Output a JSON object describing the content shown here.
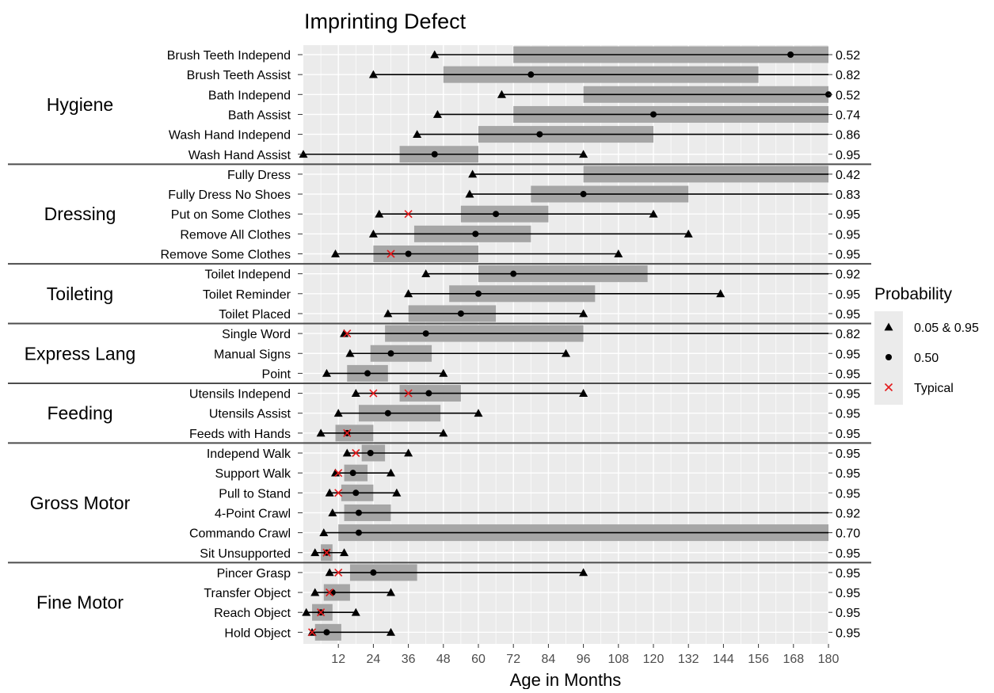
{
  "chart_data": {
    "type": "interval",
    "title": "Imprinting Defect",
    "xlabel": "Age in Months",
    "xlim": [
      0,
      180
    ],
    "xticks": [
      12,
      24,
      36,
      48,
      60,
      72,
      84,
      96,
      108,
      120,
      132,
      144,
      156,
      168,
      180
    ],
    "grid": true,
    "legend": {
      "title": "Probability",
      "placement": "right",
      "entries": [
        {
          "symbol": "triangle",
          "label": "0.05 & 0.95"
        },
        {
          "symbol": "circle",
          "label": "0.50"
        },
        {
          "symbol": "cross",
          "label": "Typical"
        }
      ]
    },
    "colors": {
      "panel": "#ebebeb",
      "bar": "#a6a6a6",
      "typical": "#e41a1c",
      "mark": "#000000",
      "group_line": "#4d4d4d"
    },
    "groups": [
      {
        "name": "Hygiene",
        "items": [
          {
            "label": "Brush Teeth Independ",
            "p05": 45,
            "p50": 167,
            "p95": 180,
            "bar": [
              72,
              180
            ],
            "typical": [],
            "prob": "0.52"
          },
          {
            "label": "Brush Teeth Assist",
            "p05": 24,
            "p50": 78,
            "p95": 180,
            "bar": [
              48,
              156
            ],
            "typical": [],
            "prob": "0.82"
          },
          {
            "label": "Bath Independ",
            "p05": 68,
            "p50": 180,
            "p95": 180,
            "bar": [
              96,
              180
            ],
            "typical": [],
            "prob": "0.52"
          },
          {
            "label": "Bath Assist",
            "p05": 46,
            "p50": 120,
            "p95": 180,
            "bar": [
              72,
              180
            ],
            "typical": [],
            "prob": "0.74"
          },
          {
            "label": "Wash Hand Independ",
            "p05": 39,
            "p50": 81,
            "p95": 180,
            "bar": [
              60,
              120
            ],
            "typical": [],
            "prob": "0.86"
          },
          {
            "label": "Wash Hand Assist",
            "p05": 0,
            "p50": 45,
            "p95": 96,
            "bar": [
              33,
              60
            ],
            "typical": [],
            "prob": "0.95"
          }
        ]
      },
      {
        "name": "Dressing",
        "items": [
          {
            "label": "Fully Dress",
            "p05": 58,
            "p50": null,
            "p95": 180,
            "bar": [
              96,
              180
            ],
            "typical": [],
            "prob": "0.42"
          },
          {
            "label": "Fully Dress No Shoes",
            "p05": 57,
            "p50": 96,
            "p95": 180,
            "bar": [
              78,
              132
            ],
            "typical": [],
            "prob": "0.83"
          },
          {
            "label": "Put on Some Clothes",
            "p05": 26,
            "p50": 66,
            "p95": 120,
            "bar": [
              54,
              84
            ],
            "typical": [
              36
            ],
            "prob": "0.95"
          },
          {
            "label": "Remove All Clothes",
            "p05": 24,
            "p50": 59,
            "p95": 132,
            "bar": [
              38,
              78
            ],
            "typical": [],
            "prob": "0.95"
          },
          {
            "label": "Remove Some Clothes",
            "p05": 11,
            "p50": 36,
            "p95": 108,
            "bar": [
              24,
              60
            ],
            "typical": [
              30
            ],
            "prob": "0.95"
          }
        ]
      },
      {
        "name": "Toileting",
        "items": [
          {
            "label": "Toilet Independ",
            "p05": 42,
            "p50": 72,
            "p95": 180,
            "bar": [
              60,
              118
            ],
            "typical": [],
            "prob": "0.92"
          },
          {
            "label": "Toilet Reminder",
            "p05": 36,
            "p50": 60,
            "p95": 143,
            "bar": [
              50,
              100
            ],
            "typical": [],
            "prob": "0.95"
          },
          {
            "label": "Toilet Placed",
            "p05": 29,
            "p50": 54,
            "p95": 96,
            "bar": [
              36,
              66
            ],
            "typical": [],
            "prob": "0.95"
          }
        ]
      },
      {
        "name": "Express Lang",
        "items": [
          {
            "label": "Single Word",
            "p05": 14,
            "p50": 42,
            "p95": 180,
            "bar": [
              28,
              96
            ],
            "typical": [
              15
            ],
            "prob": "0.82"
          },
          {
            "label": "Manual Signs",
            "p05": 16,
            "p50": 30,
            "p95": 90,
            "bar": [
              23,
              44
            ],
            "typical": [],
            "prob": "0.95"
          },
          {
            "label": "Point",
            "p05": 8,
            "p50": 22,
            "p95": 48,
            "bar": [
              15,
              29
            ],
            "typical": [],
            "prob": "0.95"
          }
        ]
      },
      {
        "name": "Feeding",
        "items": [
          {
            "label": "Utensils Independ",
            "p05": 18,
            "p50": 43,
            "p95": 96,
            "bar": [
              33,
              54
            ],
            "typical": [
              24,
              36
            ],
            "prob": "0.95"
          },
          {
            "label": "Utensils Assist",
            "p05": 12,
            "p50": 29,
            "p95": 60,
            "bar": [
              19,
              47
            ],
            "typical": [],
            "prob": "0.95"
          },
          {
            "label": "Feeds with Hands",
            "p05": 6,
            "p50": 15,
            "p95": 48,
            "bar": [
              11,
              24
            ],
            "typical": [
              15
            ],
            "prob": "0.95"
          }
        ]
      },
      {
        "name": "Gross Motor",
        "items": [
          {
            "label": "Independ Walk",
            "p05": 15,
            "p50": 23,
            "p95": 36,
            "bar": [
              20,
              28
            ],
            "typical": [
              18
            ],
            "prob": "0.95"
          },
          {
            "label": "Support Walk",
            "p05": 11,
            "p50": 17,
            "p95": 30,
            "bar": [
              14,
              22
            ],
            "typical": [
              12
            ],
            "prob": "0.95"
          },
          {
            "label": "Pull to Stand",
            "p05": 9,
            "p50": 18,
            "p95": 32,
            "bar": [
              13,
              24
            ],
            "typical": [
              12
            ],
            "prob": "0.95"
          },
          {
            "label": "4-Point Crawl",
            "p05": 10,
            "p50": 19,
            "p95": 180,
            "bar": [
              14,
              30
            ],
            "typical": [],
            "prob": "0.92"
          },
          {
            "label": "Commando Crawl",
            "p05": 7,
            "p50": 19,
            "p95": 180,
            "bar": [
              12,
              180
            ],
            "typical": [],
            "prob": "0.70"
          },
          {
            "label": "Sit Unsupported",
            "p05": 4,
            "p50": 8,
            "p95": 14,
            "bar": [
              6,
              10
            ],
            "typical": [
              8
            ],
            "prob": "0.95"
          }
        ]
      },
      {
        "name": "Fine Motor",
        "items": [
          {
            "label": "Pincer Grasp",
            "p05": 9,
            "p50": 24,
            "p95": 96,
            "bar": [
              16,
              39
            ],
            "typical": [
              12
            ],
            "prob": "0.95"
          },
          {
            "label": "Transfer Object",
            "p05": 4,
            "p50": 10,
            "p95": 30,
            "bar": [
              7,
              16
            ],
            "typical": [
              9
            ],
            "prob": "0.95"
          },
          {
            "label": "Reach Object",
            "p05": 1,
            "p50": 6,
            "p95": 18,
            "bar": [
              3,
              10
            ],
            "typical": [
              6
            ],
            "prob": "0.95"
          },
          {
            "label": "Hold Object",
            "p05": 3,
            "p50": 8,
            "p95": 30,
            "bar": [
              4,
              13
            ],
            "typical": [
              3
            ],
            "prob": "0.95"
          }
        ]
      }
    ]
  }
}
